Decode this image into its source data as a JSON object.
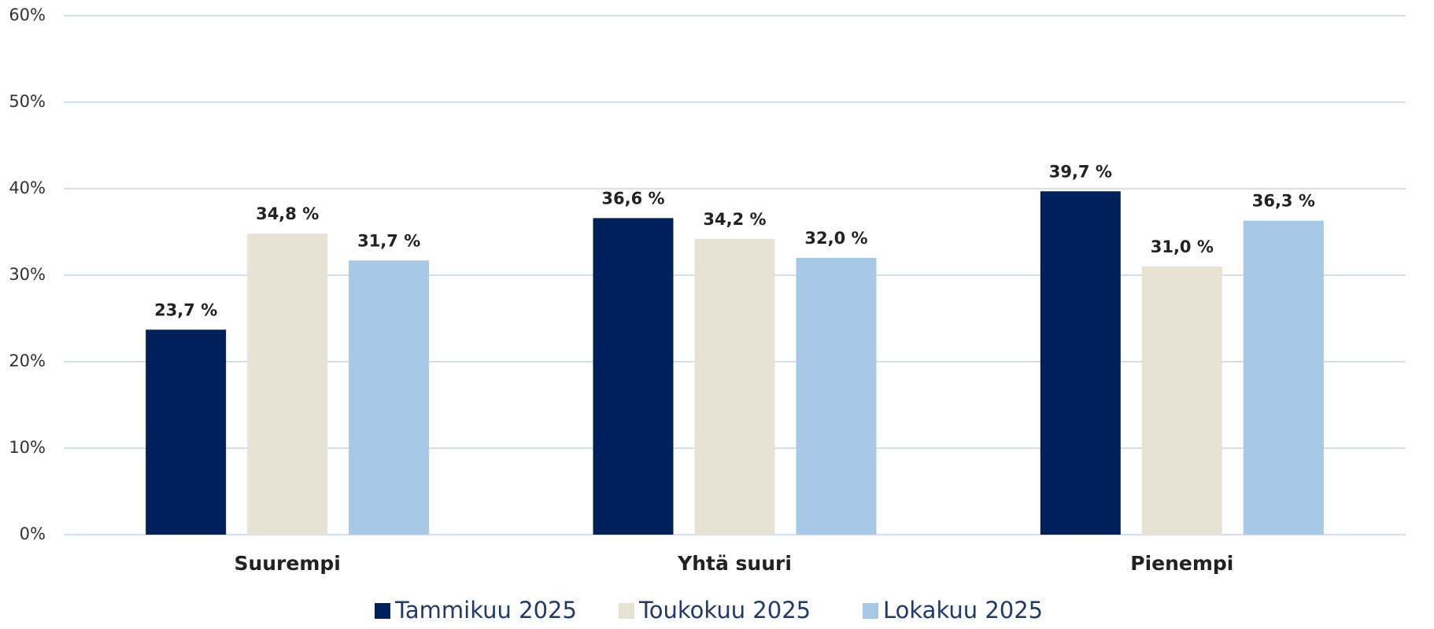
{
  "chart_data": {
    "type": "bar",
    "categories": [
      "Suurempi",
      "Yhtä suuri",
      "Pienempi"
    ],
    "series": [
      {
        "name": "Tammikuu 2025",
        "color": "#00205b",
        "values": [
          23.7,
          36.6,
          39.7
        ],
        "value_labels": [
          "23,7 %",
          "36,6 %",
          "39,7 %"
        ]
      },
      {
        "name": "Toukokuu 2025",
        "color": "#e8e2d4",
        "values": [
          34.8,
          34.2,
          31.0
        ],
        "value_labels": [
          "34,8 %",
          "34,2 %",
          "31,0 %"
        ]
      },
      {
        "name": "Lokakuu 2025",
        "color": "#a7c8e7",
        "values": [
          31.7,
          32.0,
          36.3
        ],
        "value_labels": [
          "31,7 %",
          "32,0 %",
          "36,3 %"
        ]
      }
    ],
    "ylim": [
      0,
      60
    ],
    "yticks": [
      {
        "value": 0,
        "label": "0%"
      },
      {
        "value": 10,
        "label": "10%"
      },
      {
        "value": 20,
        "label": "20%"
      },
      {
        "value": 30,
        "label": "30%"
      },
      {
        "value": 40,
        "label": "40%"
      },
      {
        "value": 50,
        "label": "50%"
      },
      {
        "value": 60,
        "label": "60%"
      }
    ],
    "grid": true,
    "legend": "bottom"
  }
}
